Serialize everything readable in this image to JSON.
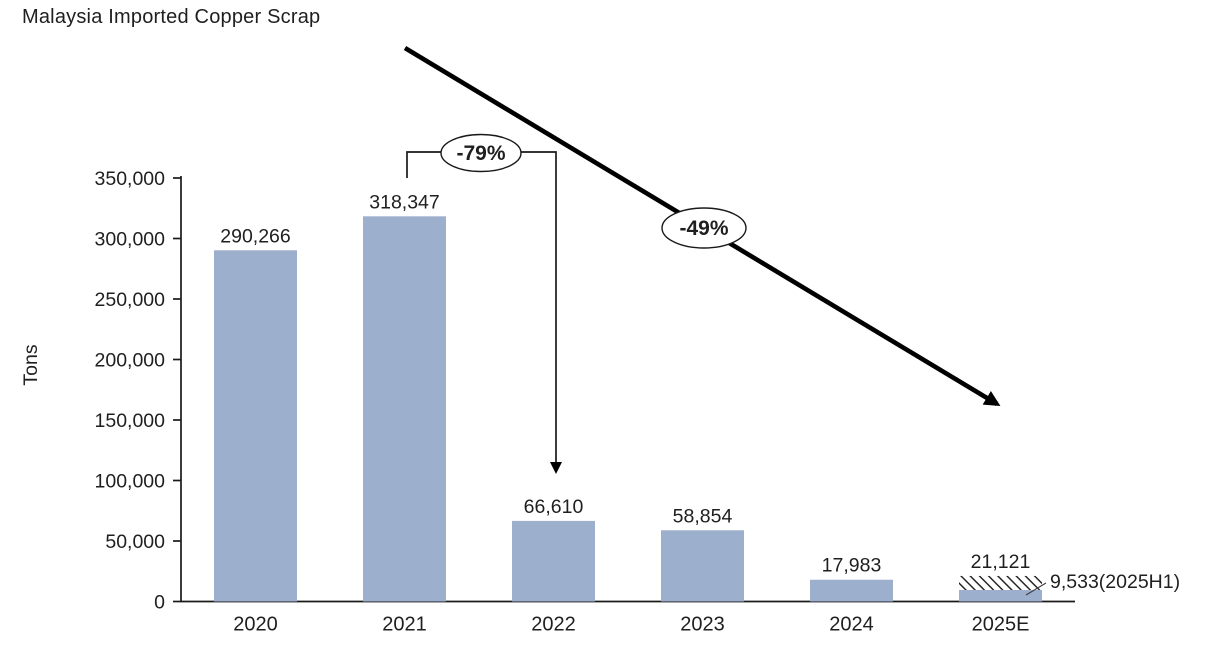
{
  "title": "Malaysia Imported Copper Scrap",
  "accent_color": "#C00845",
  "text_color": "#1F1F1F",
  "chart_data": {
    "type": "bar",
    "title": "Malaysia Imported Copper Scrap",
    "xlabel": "",
    "ylabel": "Tons",
    "ylim": [
      0,
      350000
    ],
    "grid": false,
    "legend": "none",
    "bar_color": "#9CAFCD",
    "hatch_color": "#1a1a1a",
    "categories": [
      "2020",
      "2021",
      "2022",
      "2023",
      "2024",
      "2025E"
    ],
    "values": [
      290266,
      318347,
      66610,
      58854,
      17983,
      21121
    ],
    "value_labels": [
      "290,266",
      "318,347",
      "66,610",
      "58,854",
      "17,983",
      "21,121"
    ],
    "y_ticks": [
      {
        "value": 0,
        "label": "0"
      },
      {
        "value": 50000,
        "label": "50,000"
      },
      {
        "value": 100000,
        "label": "100,000"
      },
      {
        "value": 150000,
        "label": "150,000"
      },
      {
        "value": 200000,
        "label": "200,000"
      },
      {
        "value": 250000,
        "label": "250,000"
      },
      {
        "value": 300000,
        "label": "300,000"
      },
      {
        "value": 350000,
        "label": "350,000"
      }
    ],
    "estimate_bar": {
      "category": "2025E",
      "total_value": 21121,
      "total_label": "21,121",
      "actual_value": 9533,
      "actual_label": "9,533(2025H1)",
      "hatched_remainder": true
    },
    "annotations": [
      {
        "type": "bracket-callout",
        "text": "-79%",
        "from": "2021",
        "to": "2022"
      },
      {
        "type": "trend-arrow-callout",
        "text": "-49%",
        "from": "2021",
        "to": "2025E"
      }
    ]
  }
}
